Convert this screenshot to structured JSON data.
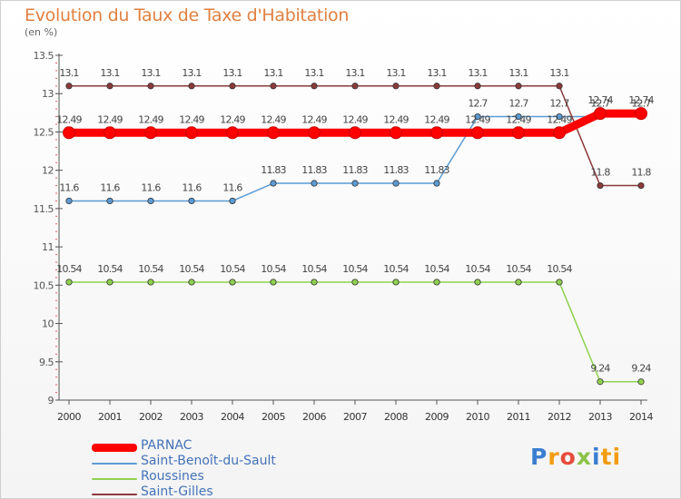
{
  "header": {
    "title": "Evolution du Taux de Taxe d'Habitation",
    "subtitle": "(en %)"
  },
  "brand": {
    "letters": [
      "P",
      "r",
      "o",
      "x",
      "i",
      "ti"
    ]
  },
  "chart_data": {
    "type": "line",
    "title": "Evolution du Taux de Taxe d'Habitation",
    "ylabel": "(en %)",
    "xlabel": "",
    "x": [
      "2000",
      "2001",
      "2002",
      "2003",
      "2004",
      "2005",
      "2006",
      "2007",
      "2008",
      "2009",
      "2010",
      "2011",
      "2012",
      "2013",
      "2014"
    ],
    "ylim": [
      9,
      13.5
    ],
    "yticks": [
      9,
      9.5,
      10,
      10.5,
      11,
      11.5,
      12,
      12.5,
      13,
      13.5
    ],
    "ytick_labels": [
      "9",
      "9.5",
      "10",
      "10.5",
      "11",
      "11.5",
      "12",
      "12.5",
      "13",
      "13.5"
    ],
    "grid": false,
    "legend_position": "bottom-left",
    "series": [
      {
        "name": "PARNAC",
        "color": "#ff0000",
        "emphasis": true,
        "values": [
          12.49,
          12.49,
          12.49,
          12.49,
          12.49,
          12.49,
          12.49,
          12.49,
          12.49,
          12.49,
          12.49,
          12.49,
          12.49,
          12.74,
          12.74
        ],
        "labels": [
          "12.49",
          "12.49",
          "12.49",
          "12.49",
          "12.49",
          "12.49",
          "12.49",
          "12.49",
          "12.49",
          "12.49",
          "12.49",
          "12.49",
          "12.49",
          "12.74",
          "12.74"
        ]
      },
      {
        "name": "Saint-Benoît-du-Sault",
        "color": "#5b9bd5",
        "emphasis": false,
        "values": [
          11.6,
          11.6,
          11.6,
          11.6,
          11.6,
          11.83,
          11.83,
          11.83,
          11.83,
          11.83,
          12.7,
          12.7,
          12.7,
          12.7,
          12.7
        ],
        "labels": [
          "11.6",
          "11.6",
          "11.6",
          "11.6",
          "11.6",
          "11.83",
          "11.83",
          "11.83",
          "11.83",
          "11.83",
          "12.7",
          "12.7",
          "12.7",
          "12.7",
          "12.7"
        ]
      },
      {
        "name": "Roussines",
        "color": "#8fd14f",
        "emphasis": false,
        "values": [
          10.54,
          10.54,
          10.54,
          10.54,
          10.54,
          10.54,
          10.54,
          10.54,
          10.54,
          10.54,
          10.54,
          10.54,
          10.54,
          9.24,
          9.24
        ],
        "labels": [
          "10.54",
          "10.54",
          "10.54",
          "10.54",
          "10.54",
          "10.54",
          "10.54",
          "10.54",
          "10.54",
          "10.54",
          "10.54",
          "10.54",
          "10.54",
          "9.24",
          "9.24"
        ]
      },
      {
        "name": "Saint-Gilles",
        "color": "#8b3a3a",
        "emphasis": false,
        "values": [
          13.1,
          13.1,
          13.1,
          13.1,
          13.1,
          13.1,
          13.1,
          13.1,
          13.1,
          13.1,
          13.1,
          13.1,
          13.1,
          11.8,
          11.8
        ],
        "labels": [
          "13.1",
          "13.1",
          "13.1",
          "13.1",
          "13.1",
          "13.1",
          "13.1",
          "13.1",
          "13.1",
          "13.1",
          "13.1",
          "13.1",
          "13.1",
          "11.8",
          "11.8"
        ]
      }
    ]
  }
}
